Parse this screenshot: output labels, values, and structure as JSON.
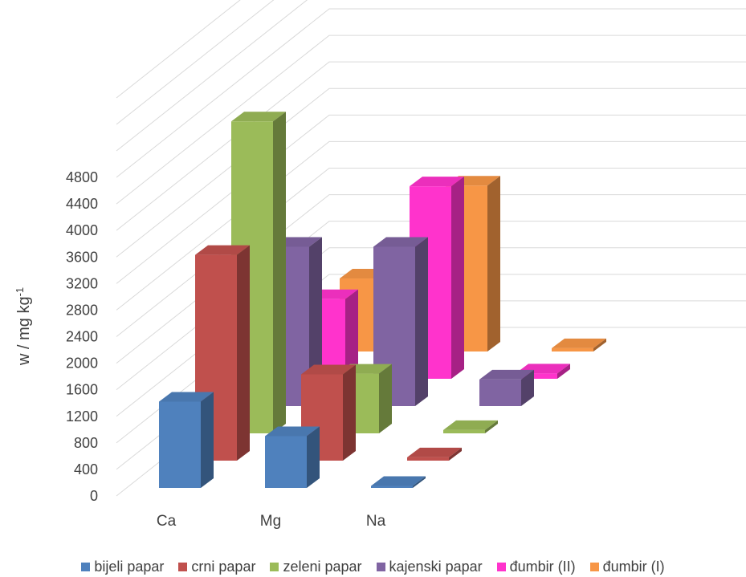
{
  "chart_data": {
    "type": "bar",
    "style": "3d-clustered-depth",
    "categories": [
      "Ca",
      "Mg",
      "Na"
    ],
    "series": [
      {
        "name": "bijeli papar",
        "color": "#4F81BD",
        "values": [
          1300,
          780,
          30
        ]
      },
      {
        "name": "crni papar",
        "color": "#C0504D",
        "values": [
          3100,
          1300,
          50
        ]
      },
      {
        "name": "zeleni papar",
        "color": "#9BBB59",
        "values": [
          4700,
          900,
          50
        ]
      },
      {
        "name": "kajenski papar",
        "color": "#8064A2",
        "values": [
          2400,
          2400,
          400
        ]
      },
      {
        "name": "đumbir (II)",
        "color": "#FF33CC",
        "values": [
          1200,
          2900,
          80
        ]
      },
      {
        "name": "đumbir (I)",
        "color": "#F79646",
        "values": [
          1100,
          2500,
          50
        ]
      }
    ],
    "ylabel": "w / mg kg",
    "ylabel_superscript": "-1",
    "ylim": [
      0,
      4800
    ],
    "yticks": [
      "0",
      "400",
      "800",
      "1200",
      "1600",
      "2000",
      "2400",
      "2800",
      "3200",
      "3600",
      "4000",
      "4400",
      "4800"
    ],
    "grid": true,
    "legend": "bottom"
  }
}
